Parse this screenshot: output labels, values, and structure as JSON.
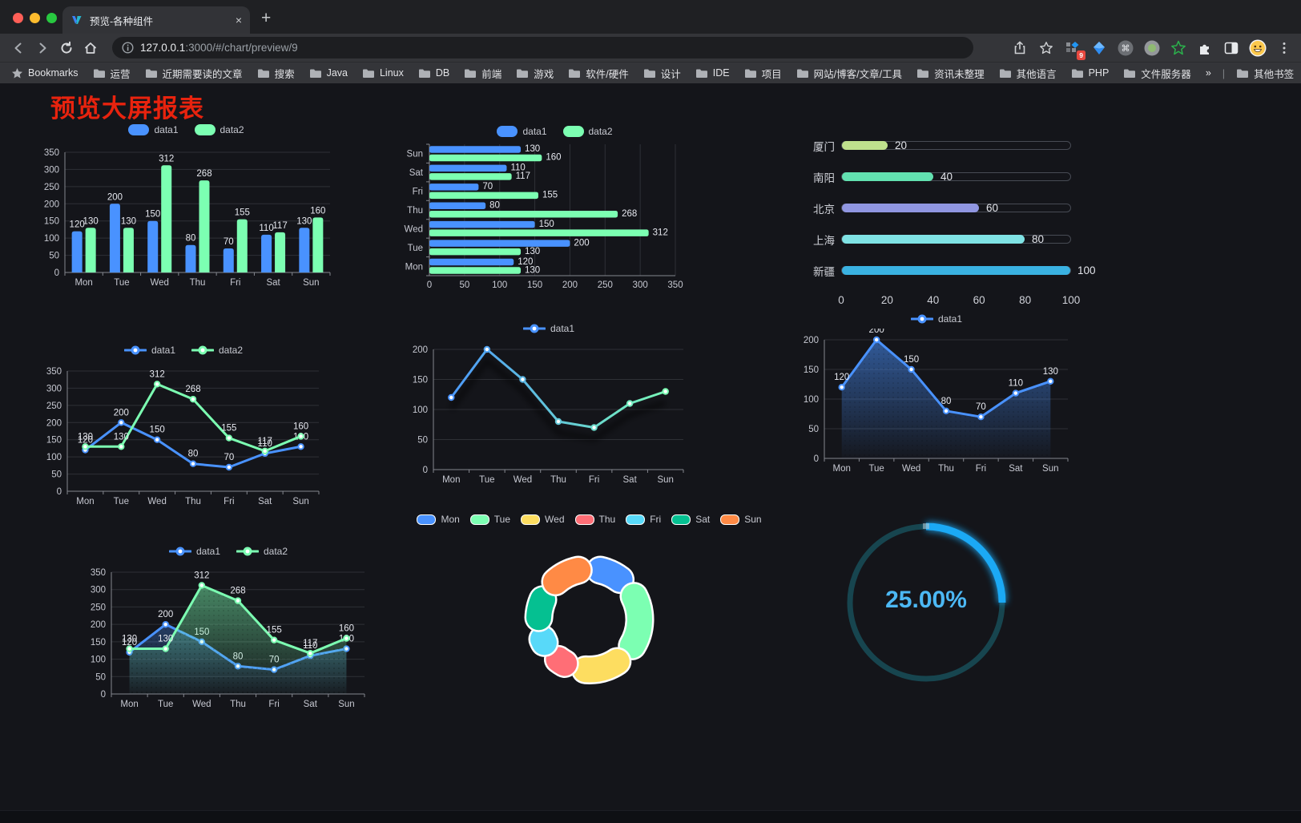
{
  "browser": {
    "tab": {
      "title": "预览-各种组件",
      "close": "×"
    },
    "new_tab": "+",
    "url": {
      "host": "127.0.0.1",
      "rest": ":3000/#/chart/preview/9"
    },
    "extension_badge": "9",
    "bookmarks_bar": {
      "label": "Bookmarks",
      "folders": [
        "运营",
        "近期需要读的文章",
        "搜索",
        "Java",
        "Linux",
        "DB",
        "前端",
        "游戏",
        "软件/硬件",
        "设计",
        "IDE",
        "项目",
        "网站/博客/文章/工具",
        "资讯未整理",
        "其他语言",
        "PHP",
        "文件服务器"
      ],
      "overflow": "»",
      "other_bookmarks": "其他书签"
    }
  },
  "page": {
    "title": "预览大屏报表",
    "title_color": "#e8230e"
  },
  "chart_data": [
    {
      "id": "c1",
      "type": "bar",
      "title": "",
      "xlabel": "",
      "ylabel": "",
      "categories": [
        "Mon",
        "Tue",
        "Wed",
        "Thu",
        "Fri",
        "Sat",
        "Sun"
      ],
      "series": [
        {
          "name": "data1",
          "color": "#4992ff",
          "values": [
            120,
            200,
            150,
            80,
            70,
            110,
            130
          ]
        },
        {
          "name": "data2",
          "color": "#7cffb2",
          "values": [
            130,
            130,
            312,
            268,
            155,
            117,
            160
          ]
        }
      ],
      "ylim": [
        0,
        350
      ],
      "ystep": 50,
      "grid": true,
      "legend_position": "top",
      "labels": true
    },
    {
      "id": "c2",
      "type": "hbar",
      "categories": [
        "Mon",
        "Tue",
        "Wed",
        "Thu",
        "Fri",
        "Sat",
        "Sun"
      ],
      "series": [
        {
          "name": "data1",
          "color": "#4992ff",
          "values": [
            120,
            200,
            150,
            80,
            70,
            110,
            130
          ]
        },
        {
          "name": "data2",
          "color": "#7cffb2",
          "values": [
            130,
            130,
            312,
            268,
            155,
            117,
            160
          ]
        }
      ],
      "xlim": [
        0,
        350
      ],
      "xstep": 50,
      "grid": true,
      "legend_position": "top",
      "labels": true
    },
    {
      "id": "c3",
      "type": "progress",
      "max": 100,
      "xticks": [
        0,
        20,
        40,
        60,
        80,
        100
      ],
      "items": [
        {
          "label": "厦门",
          "value": 20,
          "color": "#bfe18d"
        },
        {
          "label": "南阳",
          "value": 40,
          "color": "#62e1b0"
        },
        {
          "label": "北京",
          "value": 60,
          "color": "#9096e1"
        },
        {
          "label": "上海",
          "value": 80,
          "color": "#7fe2e4"
        },
        {
          "label": "新疆",
          "value": 100,
          "color": "#3ab2e2"
        }
      ]
    },
    {
      "id": "c4",
      "type": "line",
      "categories": [
        "Mon",
        "Tue",
        "Wed",
        "Thu",
        "Fri",
        "Sat",
        "Sun"
      ],
      "series": [
        {
          "name": "data1",
          "color": "#4992ff",
          "values": [
            120,
            200,
            150,
            80,
            70,
            110,
            130
          ]
        },
        {
          "name": "data2",
          "color": "#7cffb2",
          "values": [
            130,
            130,
            312,
            268,
            155,
            117,
            160
          ]
        }
      ],
      "ylim": [
        0,
        350
      ],
      "ystep": 50,
      "grid": true,
      "legend_position": "top",
      "labels": true
    },
    {
      "id": "c5",
      "type": "line",
      "gradient": true,
      "shadow": true,
      "categories": [
        "Mon",
        "Tue",
        "Wed",
        "Thu",
        "Fri",
        "Sat",
        "Sun"
      ],
      "series": [
        {
          "name": "data1",
          "color": "#4992ff",
          "color2": "#7cffb2",
          "values": [
            120,
            200,
            150,
            80,
            70,
            110,
            130
          ]
        }
      ],
      "ylim": [
        0,
        200
      ],
      "ystep": 50,
      "grid": true,
      "legend_position": "top",
      "labels": false
    },
    {
      "id": "c6",
      "type": "area",
      "categories": [
        "Mon",
        "Tue",
        "Wed",
        "Thu",
        "Fri",
        "Sat",
        "Sun"
      ],
      "series": [
        {
          "name": "data1",
          "color": "#4992ff",
          "values": [
            120,
            200,
            150,
            80,
            70,
            110,
            130
          ]
        }
      ],
      "ylim": [
        0,
        200
      ],
      "ystep": 50,
      "grid": true,
      "legend_position": "top",
      "labels": true
    },
    {
      "id": "c7",
      "type": "area",
      "categories": [
        "Mon",
        "Tue",
        "Wed",
        "Thu",
        "Fri",
        "Sat",
        "Sun"
      ],
      "series": [
        {
          "name": "data1",
          "color": "#4992ff",
          "values": [
            120,
            200,
            150,
            80,
            70,
            110,
            130
          ]
        },
        {
          "name": "data2",
          "color": "#7cffb2",
          "values": [
            130,
            130,
            312,
            268,
            155,
            117,
            160
          ]
        }
      ],
      "ylim": [
        0,
        350
      ],
      "ystep": 50,
      "grid": true,
      "legend_position": "top",
      "labels": true
    },
    {
      "id": "c8",
      "type": "pie",
      "subtype": "donut",
      "categories": [
        "Mon",
        "Tue",
        "Wed",
        "Thu",
        "Fri",
        "Sat",
        "Sun"
      ],
      "values": [
        120,
        200,
        150,
        80,
        70,
        110,
        130
      ],
      "colors": [
        "#4992ff",
        "#7cffb2",
        "#fddd60",
        "#ff6e76",
        "#58d9f9",
        "#05c091",
        "#ff8a45"
      ],
      "legend_position": "top"
    },
    {
      "id": "c9",
      "type": "gauge",
      "value": 25,
      "max": 100,
      "label": "25.00%",
      "bar_color": "#1ba9f5",
      "track_color": "#17454f",
      "text_color": "#4cb8f4"
    }
  ]
}
